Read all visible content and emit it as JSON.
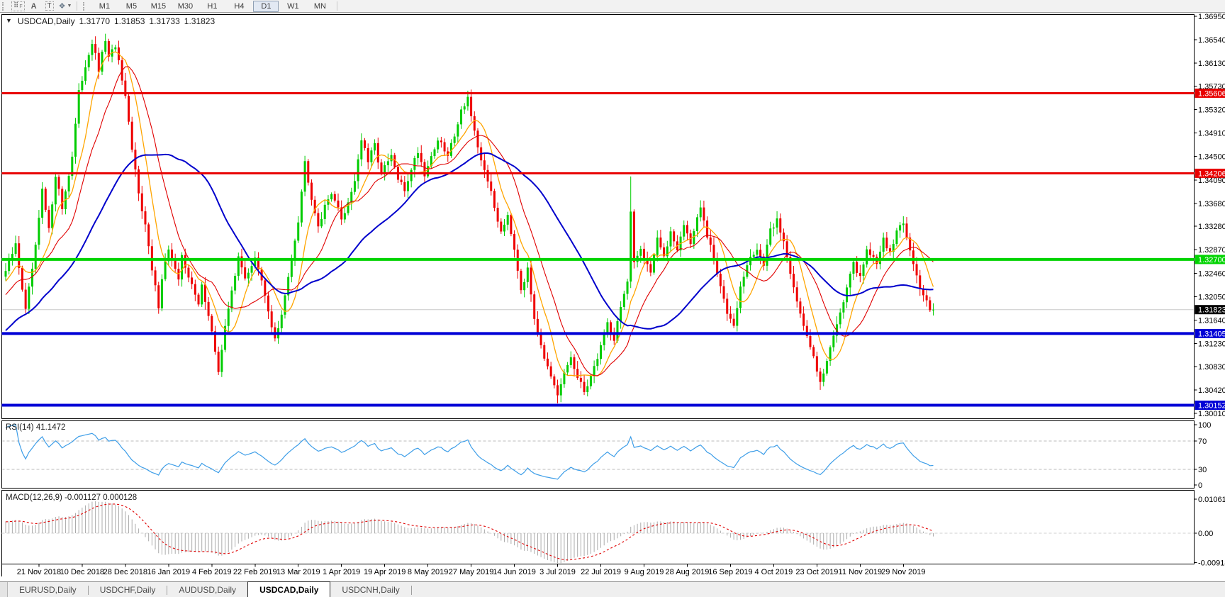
{
  "toolbar": {
    "tools": [
      {
        "id": "grid-f",
        "label": "F"
      },
      {
        "id": "font-a",
        "label": "A"
      },
      {
        "id": "text-t",
        "label": "T"
      },
      {
        "id": "shapes",
        "label": "❖"
      }
    ],
    "timeframes": [
      "M1",
      "M5",
      "M15",
      "M30",
      "H1",
      "H4",
      "D1",
      "W1",
      "MN"
    ],
    "active_timeframe": "D1"
  },
  "chart": {
    "symbol_period": "USDCAD,Daily",
    "open": "1.31770",
    "high": "1.31853",
    "low": "1.31733",
    "close": "1.31823"
  },
  "chart_data": {
    "type": "candlestick",
    "symbol": "USDCAD",
    "period": "Daily",
    "price_axis": {
      "ticks": [
        "1.36950",
        "1.36540",
        "1.36130",
        "1.35730",
        "1.35320",
        "1.34910",
        "1.34500",
        "1.34090",
        "1.33680",
        "1.33280",
        "1.32870",
        "1.32460",
        "1.32050",
        "1.31640",
        "1.31230",
        "1.30830",
        "1.30420",
        "1.30010"
      ],
      "top_value": 1.3695,
      "bottom_value": 1.3001
    },
    "levels": [
      {
        "value": 1.35606,
        "label": "1.35606",
        "color": "#e80000",
        "width": 3
      },
      {
        "value": 1.34206,
        "label": "1.34206",
        "color": "#e80000",
        "width": 3
      },
      {
        "value": 1.327,
        "label": "1.32700",
        "color": "#00d300",
        "width": 4
      },
      {
        "value": 1.31405,
        "label": "1.31405",
        "color": "#0000d6",
        "width": 4
      },
      {
        "value": 1.30152,
        "label": "1.30152",
        "color": "#0000d6",
        "width": 4
      }
    ],
    "current_price": {
      "value": 1.31823,
      "label": "1.31823",
      "line_color": "#c8c8c8",
      "badge_color": "#000000"
    },
    "date_ticks": [
      "21 Nov 2018",
      "10 Dec 2018",
      "28 Dec 2018",
      "16 Jan 2019",
      "4 Feb 2019",
      "22 Feb 2019",
      "13 Mar 2019",
      "1 Apr 2019",
      "19 Apr 2019",
      "8 May 2019",
      "27 May 2019",
      "14 Jun 2019",
      "3 Jul 2019",
      "22 Jul 2019",
      "9 Aug 2019",
      "28 Aug 2019",
      "16 Sep 2019",
      "4 Oct 2019",
      "23 Oct 2019",
      "11 Nov 2019",
      "29 Nov 2019"
    ],
    "bars_per_tick": 13,
    "first_tick_bar": 10,
    "bar_count": 280,
    "candle_colors": {
      "up": "#00cc00",
      "down": "#ee0000"
    },
    "price_waypoints": [
      [
        0,
        1.325
      ],
      [
        3,
        1.3295
      ],
      [
        5,
        1.322
      ],
      [
        6,
        1.318
      ],
      [
        9,
        1.329
      ],
      [
        11,
        1.339
      ],
      [
        13,
        1.332
      ],
      [
        15,
        1.342
      ],
      [
        17,
        1.336
      ],
      [
        20,
        1.345
      ],
      [
        22,
        1.356
      ],
      [
        24,
        1.361
      ],
      [
        26,
        1.365
      ],
      [
        28,
        1.36
      ],
      [
        30,
        1.3655
      ],
      [
        31,
        1.362
      ],
      [
        33,
        1.3645
      ],
      [
        36,
        1.355
      ],
      [
        38,
        1.346
      ],
      [
        40,
        1.339
      ],
      [
        42,
        1.333
      ],
      [
        44,
        1.325
      ],
      [
        46,
        1.319
      ],
      [
        47,
        1.324
      ],
      [
        49,
        1.329
      ],
      [
        52,
        1.323
      ],
      [
        53,
        1.328
      ],
      [
        55,
        1.324
      ],
      [
        58,
        1.319
      ],
      [
        59,
        1.323
      ],
      [
        61,
        1.317
      ],
      [
        63,
        1.311
      ],
      [
        64,
        1.3075
      ],
      [
        66,
        1.315
      ],
      [
        68,
        1.322
      ],
      [
        70,
        1.327
      ],
      [
        72,
        1.324
      ],
      [
        75,
        1.327
      ],
      [
        77,
        1.323
      ],
      [
        79,
        1.318
      ],
      [
        81,
        1.313
      ],
      [
        83,
        1.317
      ],
      [
        85,
        1.324
      ],
      [
        88,
        1.334
      ],
      [
        90,
        1.344
      ],
      [
        92,
        1.338
      ],
      [
        94,
        1.333
      ],
      [
        96,
        1.336
      ],
      [
        98,
        1.339
      ],
      [
        101,
        1.334
      ],
      [
        103,
        1.337
      ],
      [
        105,
        1.341
      ],
      [
        107,
        1.348
      ],
      [
        109,
        1.344
      ],
      [
        111,
        1.347
      ],
      [
        113,
        1.342
      ],
      [
        116,
        1.345
      ],
      [
        118,
        1.341
      ],
      [
        120,
        1.339
      ],
      [
        122,
        1.343
      ],
      [
        124,
        1.346
      ],
      [
        126,
        1.342
      ],
      [
        128,
        1.345
      ],
      [
        130,
        1.348
      ],
      [
        133,
        1.345
      ],
      [
        135,
        1.349
      ],
      [
        137,
        1.353
      ],
      [
        139,
        1.3555
      ],
      [
        140,
        1.352
      ],
      [
        142,
        1.346
      ],
      [
        145,
        1.341
      ],
      [
        147,
        1.336
      ],
      [
        149,
        1.332
      ],
      [
        151,
        1.335
      ],
      [
        153,
        1.329
      ],
      [
        155,
        1.322
      ],
      [
        157,
        1.325
      ],
      [
        159,
        1.317
      ],
      [
        162,
        1.31
      ],
      [
        164,
        1.306
      ],
      [
        166,
        1.303
      ],
      [
        168,
        1.307
      ],
      [
        170,
        1.31
      ],
      [
        172,
        1.306
      ],
      [
        174,
        1.304
      ],
      [
        177,
        1.308
      ],
      [
        179,
        1.312
      ],
      [
        181,
        1.316
      ],
      [
        183,
        1.313
      ],
      [
        185,
        1.319
      ],
      [
        187,
        1.323
      ],
      [
        188,
        1.335
      ],
      [
        189,
        1.326
      ],
      [
        191,
        1.329
      ],
      [
        194,
        1.325
      ],
      [
        196,
        1.331
      ],
      [
        198,
        1.327
      ],
      [
        200,
        1.332
      ],
      [
        202,
        1.329
      ],
      [
        204,
        1.333
      ],
      [
        206,
        1.33
      ],
      [
        209,
        1.336
      ],
      [
        211,
        1.331
      ],
      [
        213,
        1.327
      ],
      [
        215,
        1.322
      ],
      [
        217,
        1.318
      ],
      [
        219,
        1.316
      ],
      [
        221,
        1.322
      ],
      [
        223,
        1.326
      ],
      [
        226,
        1.329
      ],
      [
        228,
        1.326
      ],
      [
        230,
        1.332
      ],
      [
        232,
        1.334
      ],
      [
        234,
        1.33
      ],
      [
        236,
        1.325
      ],
      [
        238,
        1.32
      ],
      [
        240,
        1.315
      ],
      [
        243,
        1.31
      ],
      [
        245,
        1.306
      ],
      [
        247,
        1.309
      ],
      [
        249,
        1.314
      ],
      [
        251,
        1.318
      ],
      [
        253,
        1.322
      ],
      [
        255,
        1.326
      ],
      [
        257,
        1.324
      ],
      [
        259,
        1.329
      ],
      [
        262,
        1.326
      ],
      [
        264,
        1.331
      ],
      [
        266,
        1.328
      ],
      [
        268,
        1.332
      ],
      [
        270,
        1.333
      ],
      [
        272,
        1.329
      ],
      [
        274,
        1.324
      ],
      [
        276,
        1.321
      ],
      [
        278,
        1.3185
      ],
      [
        279,
        1.31823
      ]
    ],
    "wick_overrides": {
      "30": {
        "h": 1.36645
      },
      "64": {
        "l": 1.3068
      },
      "139": {
        "h": 1.3565
      },
      "166": {
        "l": 1.30185
      },
      "188": {
        "h": 1.3415
      },
      "245": {
        "l": 1.3042
      }
    },
    "pre_window": {
      "bars": 55,
      "start_price": 1.296
    },
    "moving_averages": [
      {
        "period": 8,
        "color": "#ffa500",
        "width": 1.3
      },
      {
        "period": 16,
        "color": "#e00000",
        "width": 1.1
      },
      {
        "period": 40,
        "color": "#0000cc",
        "width": 2
      }
    ],
    "rsi": {
      "label": "RSI(14) 41.1472",
      "period": 14,
      "current": 41.1472,
      "levels": [
        70,
        30
      ],
      "axis_labels": [
        "100",
        "70",
        "30",
        "0"
      ],
      "axis_values": [
        100,
        70,
        30,
        0
      ],
      "color": "#3e9ee8"
    },
    "macd": {
      "label": "MACD(12,26,9) -0.001127 0.000128",
      "fast": 12,
      "slow": 26,
      "signal": 9,
      "main_current": -0.001127,
      "signal_current": 0.000128,
      "axis_labels": [
        "0.010615",
        "0.00",
        "-0.009181"
      ],
      "axis_values": [
        0.010615,
        0.0,
        -0.009181
      ],
      "hist_color": "#ababab",
      "signal_color": "#e00000"
    }
  },
  "tabs": {
    "items": [
      {
        "label": "EURUSD,Daily",
        "active": false
      },
      {
        "label": "USDCHF,Daily",
        "active": false
      },
      {
        "label": "AUDUSD,Daily",
        "active": false
      },
      {
        "label": "USDCAD,Daily",
        "active": true
      },
      {
        "label": "USDCNH,Daily",
        "active": false
      }
    ]
  }
}
